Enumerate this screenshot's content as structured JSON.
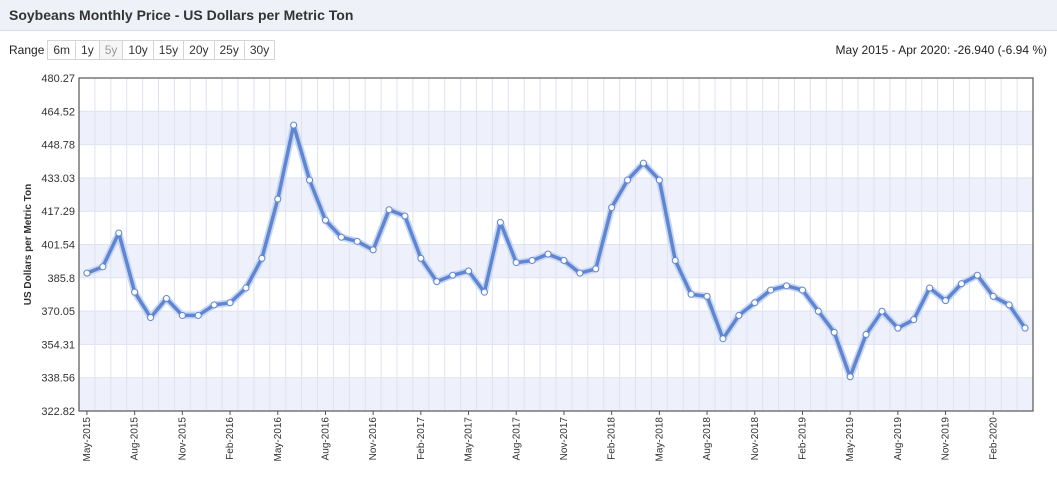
{
  "header": {
    "title": "Soybeans Monthly Price - US Dollars per Metric Ton"
  },
  "toolbar": {
    "range_label": "Range",
    "buttons": [
      {
        "label": "6m",
        "id": "6m"
      },
      {
        "label": "1y",
        "id": "1y"
      },
      {
        "label": "5y",
        "id": "5y"
      },
      {
        "label": "10y",
        "id": "10y"
      },
      {
        "label": "15y",
        "id": "15y"
      },
      {
        "label": "20y",
        "id": "20y"
      },
      {
        "label": "25y",
        "id": "25y"
      },
      {
        "label": "30y",
        "id": "30y"
      }
    ],
    "active": "5y",
    "summary": "May 2015 - Apr 2020: -26.940 (-6.94 %)"
  },
  "colors": {
    "line": "#5f86d3",
    "band": "#eef1fb",
    "grid": "#dfe3f0"
  },
  "chart_data": {
    "type": "line",
    "ylabel": "US Dollars per Metric Ton",
    "ylim": [
      322.82,
      480.27
    ],
    "yticks": [
      "480.27",
      "464.52",
      "448.78",
      "433.03",
      "417.29",
      "401.54",
      "385.8",
      "370.05",
      "354.31",
      "338.56",
      "322.82"
    ],
    "xtick_labels": [
      "May-2015",
      "Aug-2015",
      "Nov-2015",
      "Feb-2016",
      "May-2016",
      "Aug-2016",
      "Nov-2016",
      "Feb-2017",
      "May-2017",
      "Aug-2017",
      "Nov-2017",
      "Feb-2018",
      "May-2018",
      "Aug-2018",
      "Nov-2018",
      "Feb-2019",
      "May-2019",
      "Aug-2019",
      "Nov-2019",
      "Feb-2020"
    ],
    "grid": true,
    "series": [
      {
        "values": [
          388,
          391,
          407,
          379,
          367,
          376,
          368,
          368,
          373,
          374,
          381,
          395,
          423,
          458,
          432,
          413,
          405,
          403,
          399,
          418,
          415,
          395,
          384,
          387,
          389,
          379,
          412,
          393,
          394,
          397,
          394,
          388,
          390,
          419,
          432,
          440,
          432,
          394,
          378,
          377,
          357,
          368,
          374,
          380,
          382,
          380,
          370,
          360,
          339,
          359,
          370,
          362,
          366,
          381,
          375,
          383,
          387,
          377,
          373,
          362
        ]
      }
    ]
  }
}
